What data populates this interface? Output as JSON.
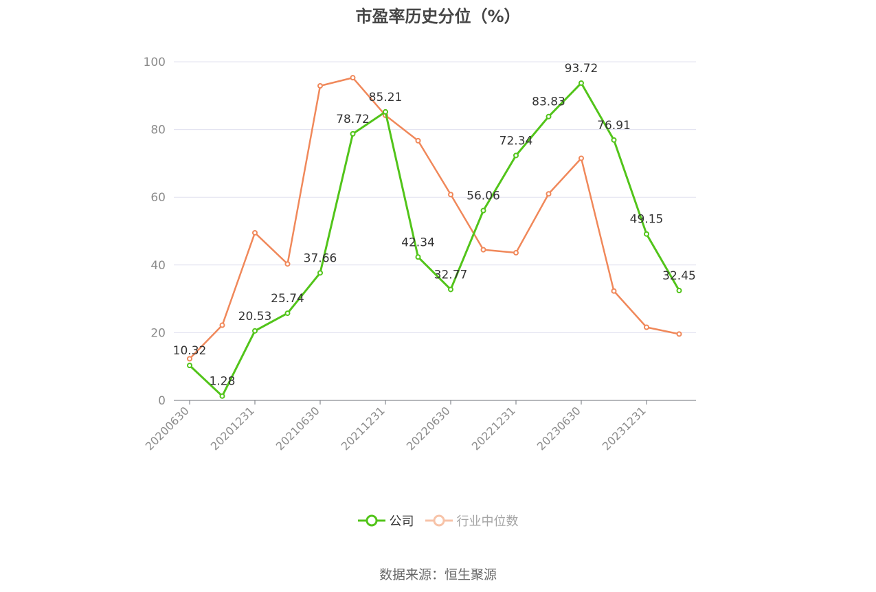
{
  "chart_data": {
    "type": "line",
    "title": "市盈率历史分位（%）",
    "x": [
      "20200630",
      "20200930",
      "20201231",
      "20210331",
      "20210630",
      "20210930",
      "20211231",
      "20220331",
      "20220630",
      "20220930",
      "20221231",
      "20230331",
      "20230630",
      "20230930",
      "20231231",
      "20240331"
    ],
    "tick_labels": [
      "20200630",
      "20201231",
      "20210630",
      "20211231",
      "20220630",
      "20221231",
      "20230630",
      "20231231"
    ],
    "ylim": [
      0,
      100
    ],
    "yticks": [
      0,
      20,
      40,
      60,
      80,
      100
    ],
    "grid": true,
    "legend_placement": "bottom",
    "series": [
      {
        "name": "公司",
        "color": "#52c41a",
        "values": [
          10.32,
          1.28,
          20.53,
          25.74,
          37.66,
          78.72,
          85.21,
          42.34,
          32.77,
          56.06,
          72.34,
          83.83,
          93.72,
          76.91,
          49.15,
          32.45
        ],
        "labels": [
          "10.32",
          "1.28",
          "20.53",
          "25.74",
          "37.66",
          "78.72",
          "85.21",
          "42.34",
          "32.77",
          "56.06",
          "72.34",
          "83.83",
          "93.72",
          "76.91",
          "49.15",
          "32.45"
        ]
      },
      {
        "name": "行业中位数",
        "color": "#f0885a",
        "values": [
          12.3,
          22.2,
          49.5,
          40.3,
          92.9,
          95.3,
          84.2,
          76.7,
          60.8,
          44.5,
          43.6,
          61.0,
          71.5,
          32.3,
          21.6,
          19.6
        ]
      }
    ]
  },
  "source": "数据来源：恒生聚源"
}
